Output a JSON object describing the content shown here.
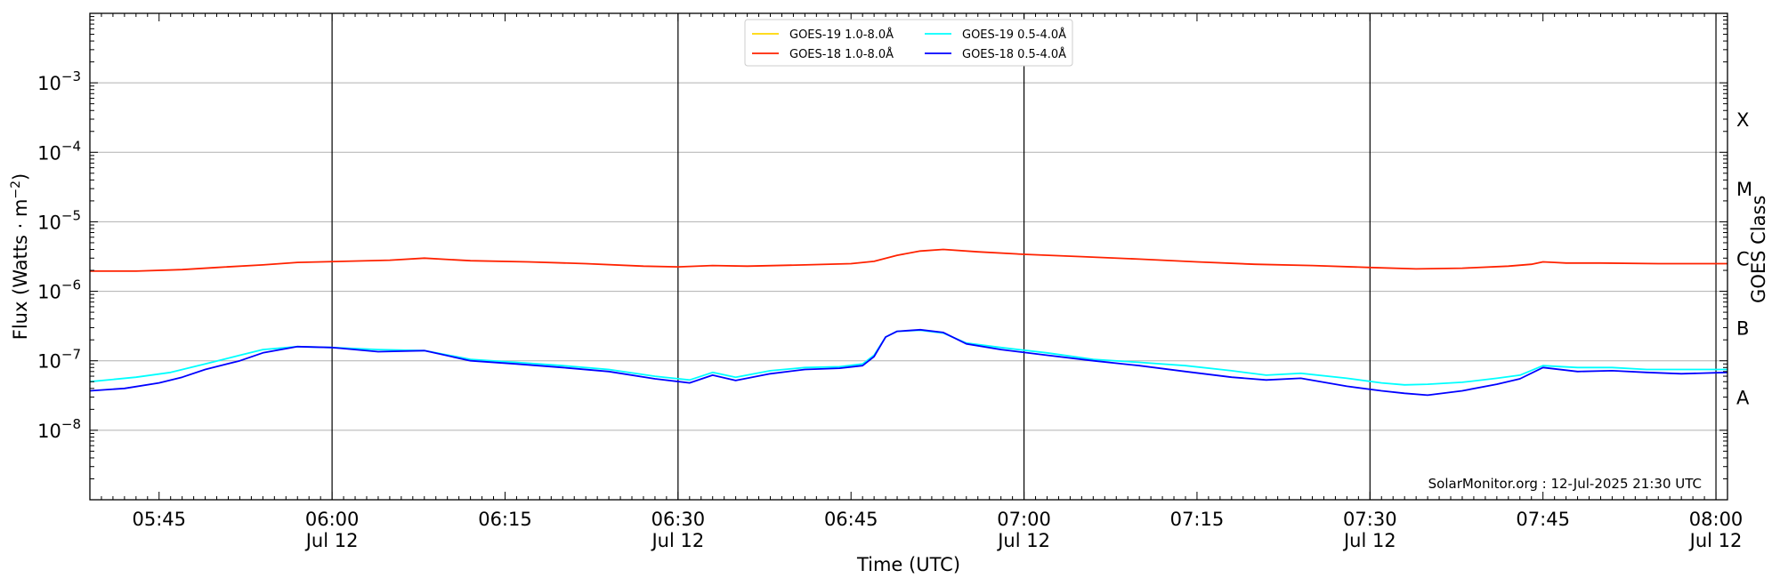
{
  "chart_data": {
    "type": "line",
    "xlabel": "Time (UTC)",
    "ylabel": "Flux (Watts · m",
    "ylabel_sup": "−2",
    "ylabel_close": ")",
    "ylabel_right": "GOES Class",
    "y_scale": "log",
    "ylim": [
      1e-09,
      0.01
    ],
    "xlim": [
      "05:39",
      "08:01"
    ],
    "y_ticks": [
      {
        "value": 1e-08,
        "base": "10",
        "exp": "−8"
      },
      {
        "value": 1e-07,
        "base": "10",
        "exp": "−7"
      },
      {
        "value": 1e-06,
        "base": "10",
        "exp": "−6"
      },
      {
        "value": 1e-05,
        "base": "10",
        "exp": "−5"
      },
      {
        "value": 0.0001,
        "base": "10",
        "exp": "−4"
      },
      {
        "value": 0.001,
        "base": "10",
        "exp": "−3"
      }
    ],
    "x_ticks": [
      {
        "time": "05:45",
        "label": "05:45",
        "date": ""
      },
      {
        "time": "06:00",
        "label": "06:00",
        "date": "Jul 12"
      },
      {
        "time": "06:15",
        "label": "06:15",
        "date": ""
      },
      {
        "time": "06:30",
        "label": "06:30",
        "date": "Jul 12"
      },
      {
        "time": "06:45",
        "label": "06:45",
        "date": ""
      },
      {
        "time": "07:00",
        "label": "07:00",
        "date": "Jul 12"
      },
      {
        "time": "07:15",
        "label": "07:15",
        "date": ""
      },
      {
        "time": "07:30",
        "label": "07:30",
        "date": "Jul 12"
      },
      {
        "time": "07:45",
        "label": "07:45",
        "date": ""
      },
      {
        "time": "08:00",
        "label": "08:00",
        "date": "Jul 12"
      }
    ],
    "day_lines": [
      "06:00",
      "06:30",
      "07:00",
      "07:30",
      "08:00"
    ],
    "grid": "horizontal",
    "goes_classes": [
      {
        "label": "A",
        "value": 3e-08
      },
      {
        "label": "B",
        "value": 3e-07
      },
      {
        "label": "C",
        "value": 3e-06
      },
      {
        "label": "M",
        "value": 3e-05
      },
      {
        "label": "X",
        "value": 0.0003
      }
    ],
    "legend_position": "top-center",
    "legend": [
      {
        "name": "GOES-19 1.0-8.0Å",
        "color": "#ffd700"
      },
      {
        "name": "GOES-19 0.5-4.0Å",
        "color": "#00ffff"
      },
      {
        "name": "GOES-18 1.0-8.0Å",
        "color": "#ff2200"
      },
      {
        "name": "GOES-18 0.5-4.0Å",
        "color": "#0000ff"
      }
    ],
    "credit": "SolarMonitor.org : 12-Jul-2025 21:30 UTC",
    "series": [
      {
        "name": "GOES-18 1.0-8.0Å",
        "color": "#ff2200",
        "x": [
          "05:39",
          "05:43",
          "05:47",
          "05:50",
          "05:54",
          "05:57",
          "06:01",
          "06:05",
          "06:08",
          "06:12",
          "06:17",
          "06:22",
          "06:27",
          "06:30",
          "06:33",
          "06:36",
          "06:41",
          "06:45",
          "06:47",
          "06:49",
          "06:51",
          "06:53",
          "06:56",
          "07:00",
          "07:05",
          "07:10",
          "07:15",
          "07:20",
          "07:25",
          "07:30",
          "07:34",
          "07:38",
          "07:42",
          "07:44",
          "07:45",
          "07:46",
          "07:47",
          "07:50",
          "07:55",
          "08:01"
        ],
        "values": [
          1.95e-06,
          1.95e-06,
          2.05e-06,
          2.2e-06,
          2.4e-06,
          2.6e-06,
          2.7e-06,
          2.8e-06,
          3e-06,
          2.75e-06,
          2.65e-06,
          2.5e-06,
          2.3e-06,
          2.25e-06,
          2.35e-06,
          2.3e-06,
          2.4e-06,
          2.5e-06,
          2.7e-06,
          3.3e-06,
          3.8e-06,
          4e-06,
          3.7e-06,
          3.4e-06,
          3.15e-06,
          2.9e-06,
          2.65e-06,
          2.45e-06,
          2.35e-06,
          2.2e-06,
          2.1e-06,
          2.15e-06,
          2.3e-06,
          2.45e-06,
          2.65e-06,
          2.6e-06,
          2.55e-06,
          2.55e-06,
          2.5e-06,
          2.5e-06
        ]
      },
      {
        "name": "GOES-19 0.5-4.0Å",
        "color": "#00ffff",
        "x": [
          "05:39",
          "05:43",
          "05:46",
          "05:49",
          "05:52",
          "05:54",
          "05:57",
          "06:00",
          "06:04",
          "06:08",
          "06:12",
          "06:16",
          "06:20",
          "06:24",
          "06:28",
          "06:31",
          "06:33",
          "06:35",
          "06:38",
          "06:41",
          "06:44",
          "06:46",
          "06:47",
          "06:48",
          "06:49",
          "06:51",
          "06:53",
          "06:55",
          "06:58",
          "07:02",
          "07:06",
          "07:10",
          "07:14",
          "07:18",
          "07:21",
          "07:24",
          "07:28",
          "07:31",
          "07:33",
          "07:35",
          "07:38",
          "07:41",
          "07:43",
          "07:45",
          "07:48",
          "07:51",
          "07:54",
          "07:57",
          "08:01"
        ],
        "values": [
          5e-08,
          5.8e-08,
          6.8e-08,
          9e-08,
          1.2e-07,
          1.45e-07,
          1.6e-07,
          1.55e-07,
          1.45e-07,
          1.4e-07,
          1.05e-07,
          9.5e-08,
          8.5e-08,
          7.5e-08,
          6e-08,
          5.3e-08,
          6.8e-08,
          5.8e-08,
          7.2e-08,
          8e-08,
          8.2e-08,
          9e-08,
          1.2e-07,
          2.2e-07,
          2.65e-07,
          2.75e-07,
          2.5e-07,
          1.8e-07,
          1.55e-07,
          1.3e-07,
          1.05e-07,
          9.5e-08,
          8.5e-08,
          7.2e-08,
          6.2e-08,
          6.6e-08,
          5.6e-08,
          4.8e-08,
          4.5e-08,
          4.6e-08,
          4.9e-08,
          5.6e-08,
          6.2e-08,
          8.5e-08,
          8e-08,
          8e-08,
          7.5e-08,
          7.5e-08,
          7.5e-08
        ]
      },
      {
        "name": "GOES-18 0.5-4.0Å",
        "color": "#0000ff",
        "x": [
          "05:39",
          "05:42",
          "05:45",
          "05:47",
          "05:49",
          "05:52",
          "05:54",
          "05:57",
          "06:00",
          "06:04",
          "06:08",
          "06:12",
          "06:16",
          "06:20",
          "06:24",
          "06:28",
          "06:31",
          "06:33",
          "06:35",
          "06:38",
          "06:41",
          "06:44",
          "06:46",
          "06:47",
          "06:48",
          "06:49",
          "06:51",
          "06:53",
          "06:55",
          "06:58",
          "07:02",
          "07:06",
          "07:10",
          "07:14",
          "07:18",
          "07:21",
          "07:24",
          "07:28",
          "07:31",
          "07:33",
          "07:35",
          "07:38",
          "07:41",
          "07:43",
          "07:45",
          "07:48",
          "07:51",
          "07:54",
          "07:57",
          "08:01"
        ],
        "values": [
          3.7e-08,
          4e-08,
          4.8e-08,
          5.8e-08,
          7.5e-08,
          1e-07,
          1.3e-07,
          1.6e-07,
          1.55e-07,
          1.35e-07,
          1.4e-07,
          1e-07,
          9e-08,
          8e-08,
          7e-08,
          5.5e-08,
          4.8e-08,
          6.2e-08,
          5.2e-08,
          6.5e-08,
          7.5e-08,
          7.8e-08,
          8.5e-08,
          1.15e-07,
          2.2e-07,
          2.65e-07,
          2.8e-07,
          2.55e-07,
          1.75e-07,
          1.45e-07,
          1.2e-07,
          1e-07,
          8.5e-08,
          7e-08,
          5.8e-08,
          5.3e-08,
          5.6e-08,
          4.3e-08,
          3.7e-08,
          3.4e-08,
          3.2e-08,
          3.7e-08,
          4.6e-08,
          5.5e-08,
          8e-08,
          7e-08,
          7.2e-08,
          6.8e-08,
          6.5e-08,
          6.8e-08
        ]
      }
    ]
  }
}
